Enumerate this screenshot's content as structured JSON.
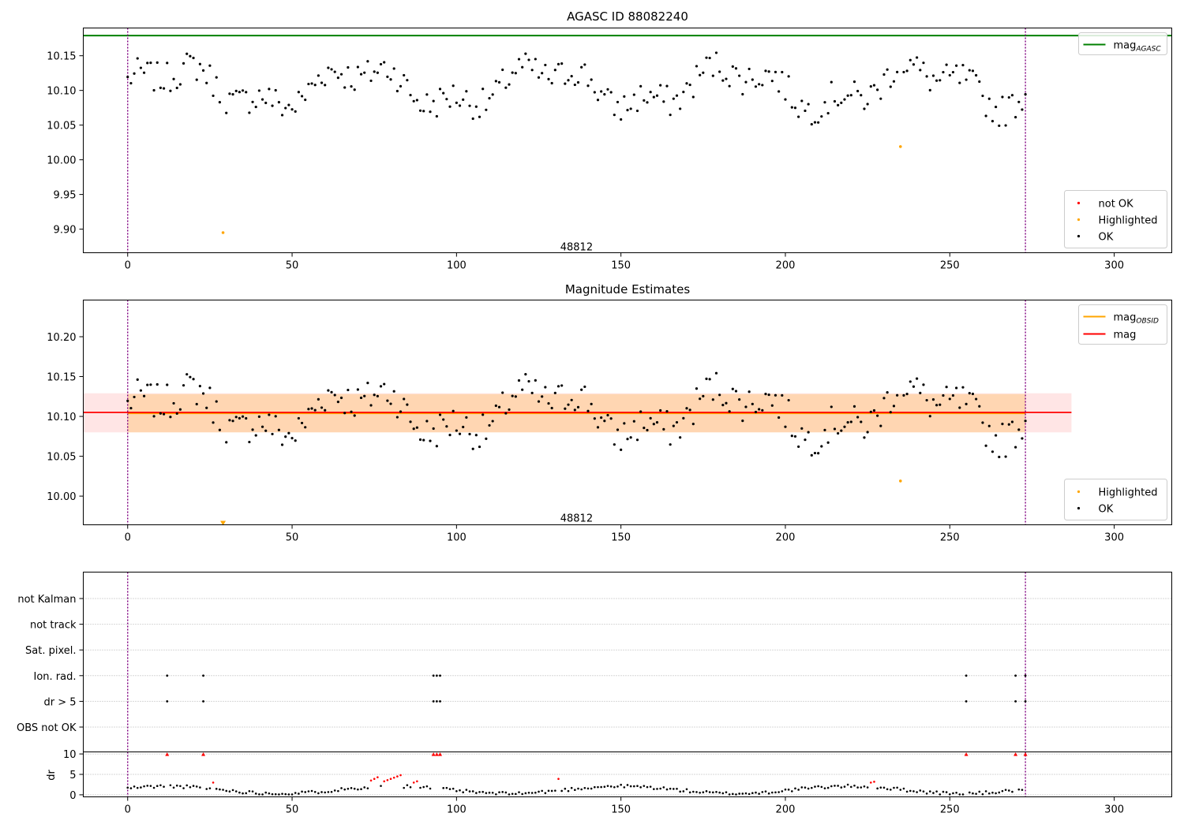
{
  "chart_data": [
    {
      "type": "scatter",
      "title": "AGASC ID 88082240",
      "xlim": [
        -13.5,
        317.5
      ],
      "ylim": [
        9.866,
        10.19
      ],
      "xticks": [
        0,
        50,
        100,
        150,
        200,
        250,
        300
      ],
      "yticks": [
        9.9,
        9.95,
        10.0,
        10.05,
        10.1,
        10.15
      ],
      "ytick_labels": [
        "9.90",
        "9.95",
        "10.00",
        "10.05",
        "10.10",
        "10.15"
      ],
      "vlines": [
        0,
        273
      ],
      "hlines": [
        {
          "name": "mag_AGASC",
          "y": 10.179,
          "color": "#008000"
        }
      ],
      "obsid_label": {
        "text": "48812",
        "x": 136.5,
        "y": 9.875
      },
      "series": [
        {
          "name": "not OK",
          "color": "#ff0000",
          "x": [],
          "y": []
        },
        {
          "name": "Highlighted",
          "color": "#ffa500",
          "x": [
            29,
            235
          ],
          "y": [
            9.895,
            10.019
          ]
        },
        {
          "name": "OK",
          "color": "#000000"
        }
      ],
      "legend_main": {
        "position": "top-right",
        "items": [
          {
            "label": "mag",
            "sub": "AGASC",
            "color": "#008000"
          }
        ]
      },
      "legend_points": {
        "position": "bottom-right",
        "items": [
          {
            "label": "not OK",
            "color": "#ff0000"
          },
          {
            "label": "Highlighted",
            "color": "#ffa500"
          },
          {
            "label": "OK",
            "color": "#000000"
          }
        ]
      }
    },
    {
      "type": "scatter",
      "title": "Magnitude Estimates",
      "xlim": [
        -13.5,
        317.5
      ],
      "ylim": [
        9.964,
        10.246
      ],
      "xticks": [
        0,
        50,
        100,
        150,
        200,
        250,
        300
      ],
      "yticks": [
        10.0,
        10.05,
        10.1,
        10.15,
        10.2
      ],
      "ytick_labels": [
        "10.00",
        "10.05",
        "10.10",
        "10.15",
        "10.20"
      ],
      "vlines": [
        0,
        273
      ],
      "mag_obsid": {
        "name": "mag_OBSID",
        "x": [
          0,
          273
        ],
        "y": 10.104,
        "band": [
          10.08,
          10.128
        ],
        "color": "#ffa500"
      },
      "mag": {
        "name": "mag",
        "x": [
          -13.5,
          287
        ],
        "y": 10.105,
        "band": [
          10.08,
          10.129
        ],
        "color": "#ff0000"
      },
      "obsid_label": {
        "text": "48812",
        "x": 136.5,
        "y": 9.973
      },
      "series": [
        {
          "name": "Highlighted",
          "color": "#ffa500",
          "x": [
            235,
            29
          ],
          "y": [
            10.019,
            9.966
          ]
        },
        {
          "name": "OK",
          "color": "#000000"
        }
      ],
      "legend_main": {
        "position": "top-right",
        "items": [
          {
            "label": "mag",
            "sub": "OBSID",
            "color": "#ffa500"
          },
          {
            "label": "mag",
            "sub": "",
            "color": "#ff0000"
          }
        ]
      },
      "legend_points": {
        "position": "bottom-right",
        "items": [
          {
            "label": "Highlighted",
            "color": "#ffa500"
          },
          {
            "label": "OK",
            "color": "#000000"
          }
        ]
      }
    },
    {
      "type": "scatter",
      "title": "",
      "xlim": [
        -13.5,
        317.5
      ],
      "xticks": [
        0,
        50,
        100,
        150,
        200,
        250,
        300
      ],
      "vlines": [
        0,
        273
      ],
      "flag_labels": [
        "not Kalman",
        "not track",
        "Sat. pixel.",
        "Ion. rad.",
        "dr > 5",
        "OBS not OK"
      ],
      "flag_points": [
        {
          "flag": "Ion. rad.",
          "x": [
            12,
            23,
            93,
            94,
            95,
            255,
            270,
            273
          ]
        },
        {
          "flag": "dr > 5",
          "x": [
            12,
            23,
            93,
            94,
            95,
            255,
            270,
            273
          ]
        }
      ],
      "dr": {
        "ylabel": "dr",
        "ylim": [
          -0.5,
          10.5
        ],
        "yticks": [
          0,
          5,
          10
        ],
        "ytick_labels": [
          "0",
          "5",
          "10"
        ],
        "red_points": {
          "x": [
            12,
            23,
            26,
            74,
            75,
            76,
            78,
            79,
            80,
            81,
            82,
            83,
            87,
            88,
            93,
            94,
            95,
            131,
            226,
            227,
            255,
            270,
            273
          ],
          "y": [
            9.9,
            9.9,
            3.0,
            3.5,
            3.9,
            4.3,
            3.3,
            3.6,
            3.9,
            4.2,
            4.5,
            4.8,
            3.0,
            3.3,
            9.9,
            9.9,
            9.9,
            3.9,
            3.0,
            3.2,
            9.9,
            9.9,
            9.9
          ]
        }
      }
    }
  ]
}
